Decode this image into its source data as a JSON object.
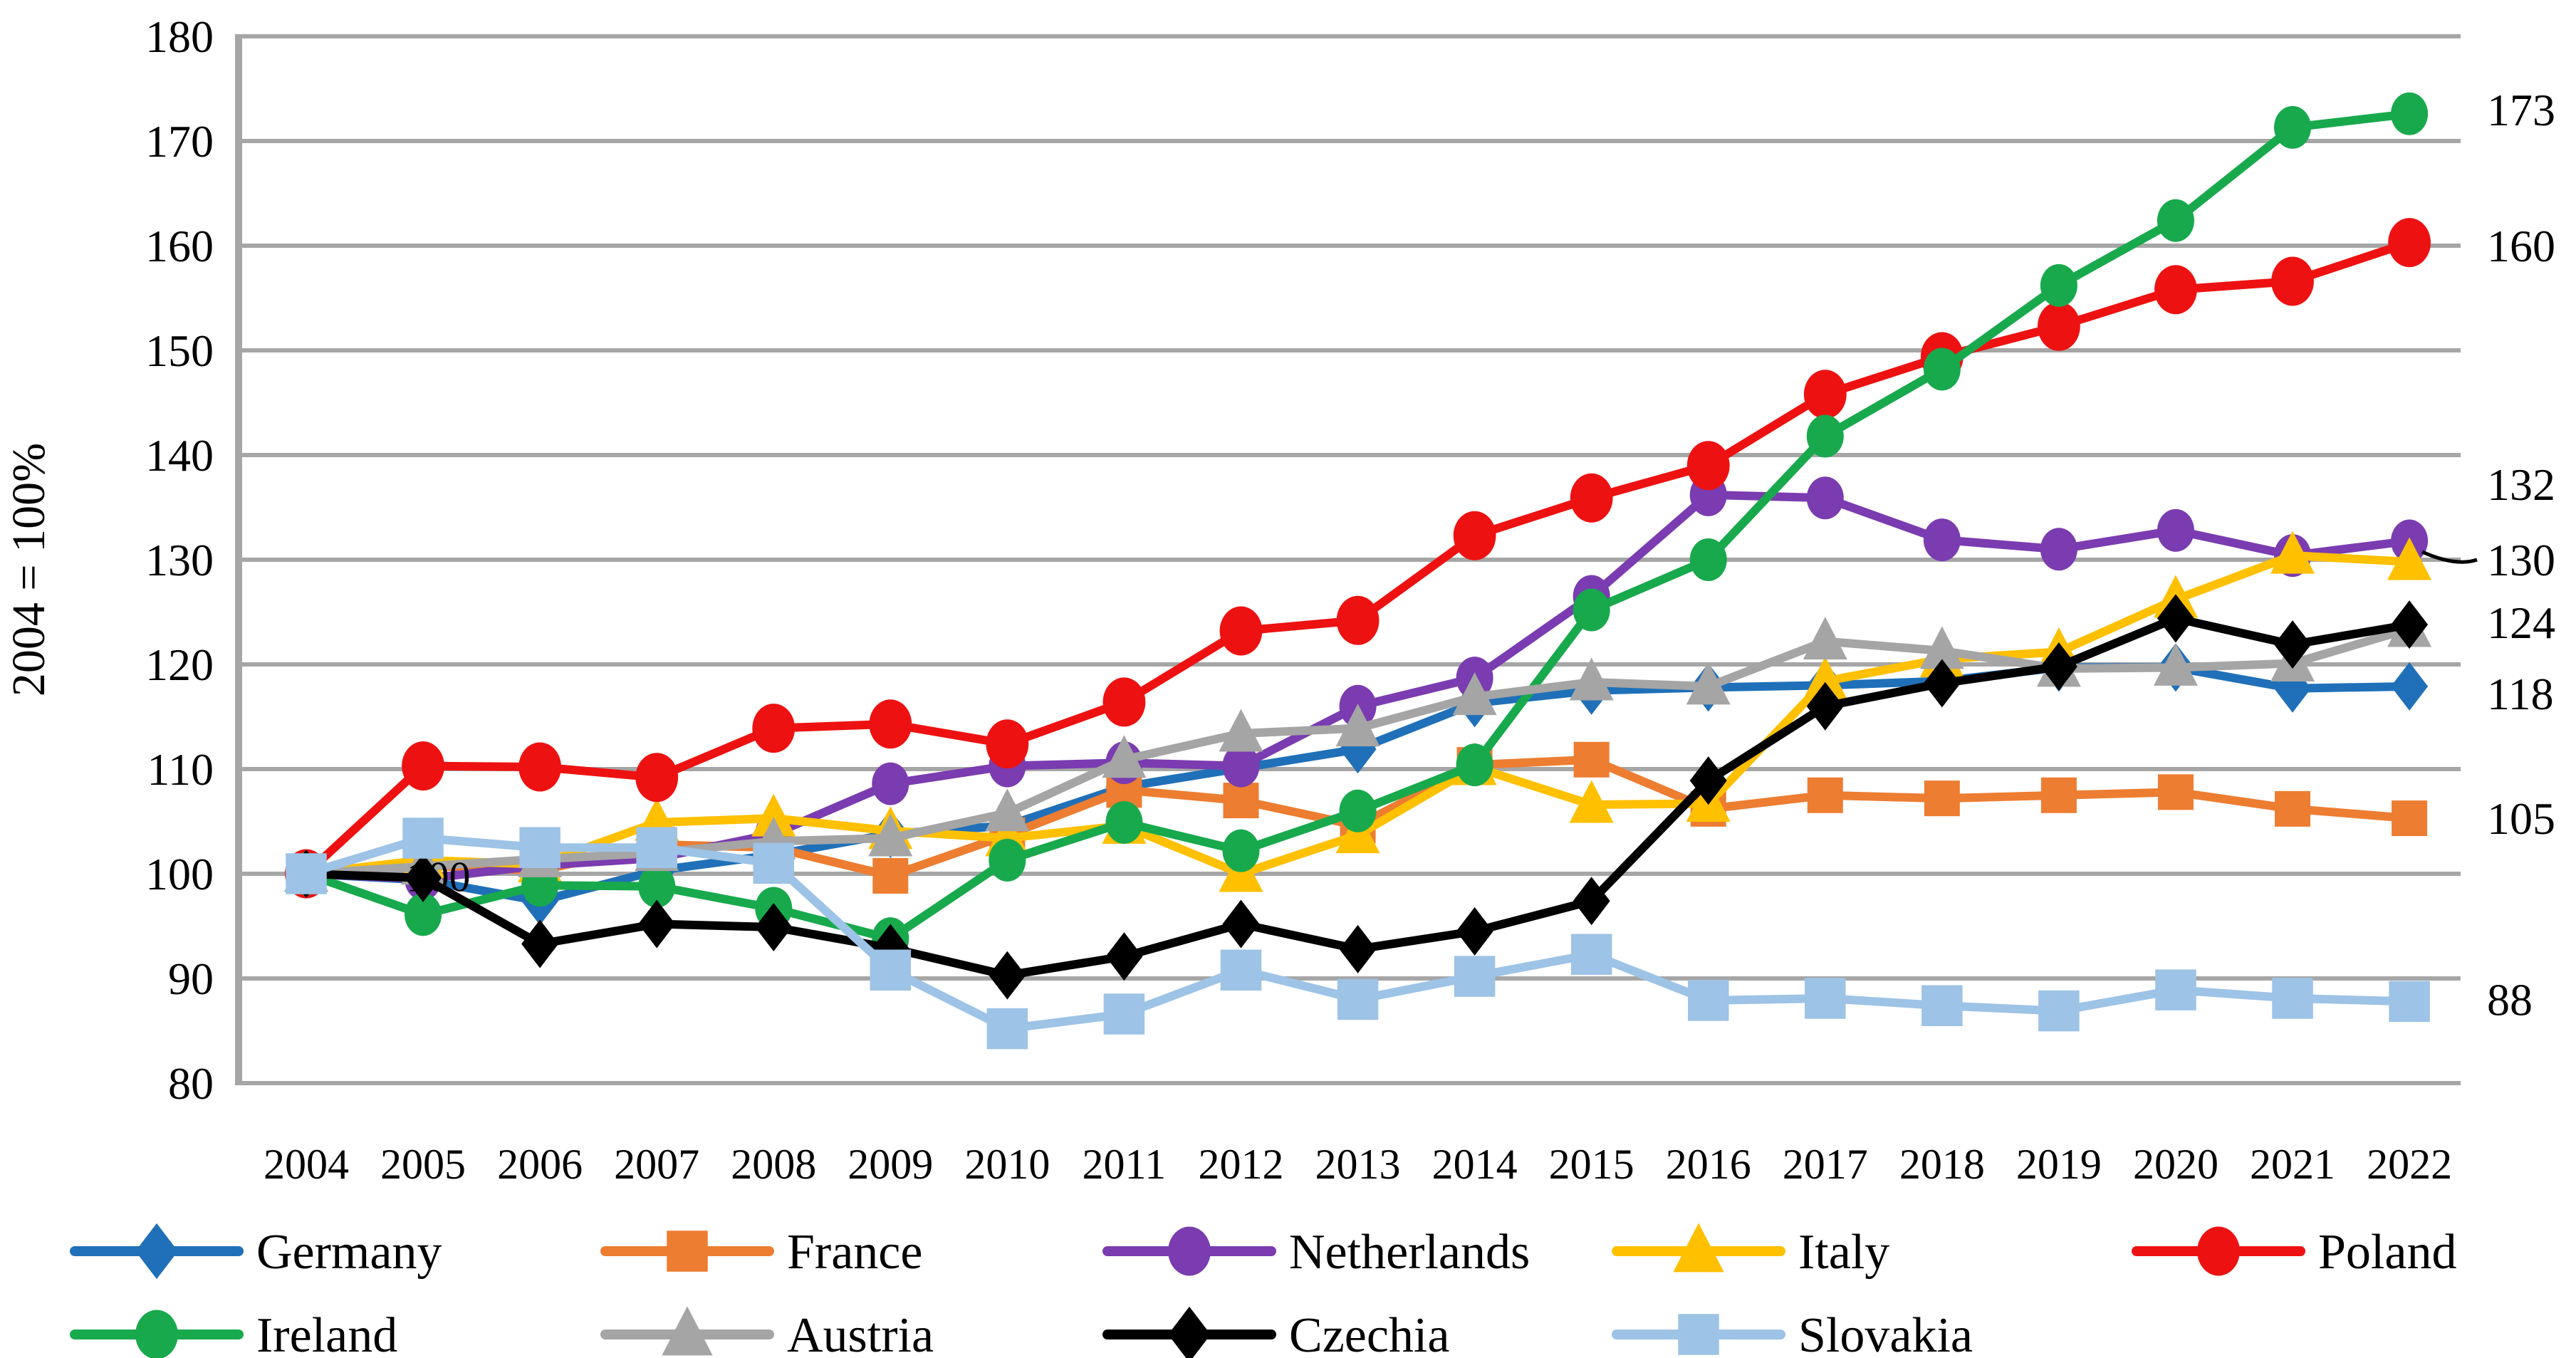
{
  "chart_data": {
    "type": "line",
    "title": "",
    "ylabel": "2004 = 100%",
    "xlabel": "",
    "x": [
      2004,
      2005,
      2006,
      2007,
      2008,
      2009,
      2010,
      2011,
      2012,
      2013,
      2014,
      2015,
      2016,
      2017,
      2018,
      2019,
      2020,
      2021,
      2022
    ],
    "ylim": [
      80,
      180
    ],
    "ytick_step": 10,
    "yticks": [
      80,
      90,
      100,
      110,
      120,
      130,
      140,
      150,
      160,
      170,
      180
    ],
    "grid": "horizontal-only",
    "legend_position": "bottom",
    "series": [
      {
        "name": "Germany",
        "color": "#1F70B8",
        "marker": "diamond",
        "values": [
          100,
          99.4,
          97.4,
          100.3,
          101.8,
          103.8,
          104.6,
          108.3,
          110.1,
          111.9,
          116.3,
          117.5,
          117.8,
          118.0,
          118.4,
          119.7,
          119.7,
          117.7,
          117.9
        ]
      },
      {
        "name": "France",
        "color": "#ED7D31",
        "marker": "square",
        "values": [
          100,
          100.8,
          100.3,
          102.8,
          102.5,
          99.8,
          103.7,
          108.0,
          107.0,
          104.6,
          110.4,
          110.9,
          106.2,
          107.5,
          107.2,
          107.5,
          107.8,
          106.2,
          105.3
        ]
      },
      {
        "name": "Netherlands",
        "color": "#7A3CB0",
        "marker": "circle",
        "values": [
          100,
          99.5,
          100.8,
          101.5,
          103.8,
          108.6,
          110.3,
          110.6,
          110.3,
          116.0,
          118.7,
          126.5,
          136.2,
          135.9,
          131.9,
          131.0,
          132.8,
          130.4,
          131.8
        ]
      },
      {
        "name": "Italy",
        "color": "#FFC000",
        "marker": "triangle",
        "values": [
          100,
          101.3,
          100.9,
          104.9,
          105.3,
          104.1,
          103.4,
          104.6,
          100.0,
          103.7,
          110.2,
          106.6,
          106.7,
          118.4,
          120.5,
          121.2,
          126.2,
          130.4,
          129.8
        ]
      },
      {
        "name": "Poland",
        "color": "#EE1111",
        "marker": "circle",
        "values": [
          100,
          110.3,
          110.2,
          109.2,
          113.9,
          114.3,
          112.4,
          116.4,
          123.2,
          124.2,
          132.3,
          135.9,
          139.0,
          145.8,
          149.4,
          152.3,
          155.8,
          156.6,
          160.3
        ]
      },
      {
        "name": "Ireland",
        "color": "#18A94D",
        "marker": "circle",
        "values": [
          100,
          96.1,
          98.9,
          98.8,
          96.7,
          93.8,
          101.3,
          104.9,
          102.2,
          106.0,
          110.4,
          125.2,
          130.0,
          141.8,
          148.2,
          156.2,
          162.4,
          171.3,
          172.6
        ]
      },
      {
        "name": "Austria",
        "color": "#A5A5A5",
        "marker": "triangle",
        "values": [
          100,
          100.7,
          101.4,
          102.0,
          103.1,
          103.4,
          105.8,
          110.9,
          113.4,
          113.9,
          116.9,
          118.3,
          117.9,
          122.2,
          121.3,
          119.6,
          119.7,
          120.1,
          123.4
        ]
      },
      {
        "name": "Czechia",
        "color": "#000000",
        "marker": "diamond",
        "values": [
          100,
          99.6,
          93.3,
          95.2,
          94.9,
          92.9,
          90.3,
          92.1,
          95.2,
          92.8,
          94.5,
          97.4,
          108.9,
          116.0,
          118.2,
          119.8,
          124.4,
          121.9,
          123.8
        ]
      },
      {
        "name": "Slovakia",
        "color": "#9DC3E6",
        "marker": "square",
        "values": [
          100,
          103.4,
          102.5,
          102.5,
          101.0,
          90.8,
          85.2,
          86.6,
          90.8,
          88.0,
          90.2,
          92.3,
          87.9,
          88.1,
          87.4,
          86.9,
          88.9,
          88.1,
          87.8
        ]
      }
    ],
    "end_labels": [
      {
        "text": "173",
        "value": 173,
        "series": "Ireland"
      },
      {
        "text": "160",
        "value": 160,
        "series": "Poland"
      },
      {
        "text": "132",
        "value": 137.2,
        "series": "Netherlands"
      },
      {
        "text": "130",
        "value": 130,
        "series": "Italy",
        "leader": true
      },
      {
        "text": "124",
        "value": 124,
        "series": "Czechia"
      },
      {
        "text": "118",
        "value": 117.2,
        "series": "Germany"
      },
      {
        "text": "105",
        "value": 105.3,
        "series": "France"
      },
      {
        "text": "88",
        "value": 88,
        "series": "Slovakia"
      }
    ],
    "start_label": {
      "text": "100",
      "x": 2005.1,
      "value": 99.7
    },
    "legend": {
      "rows": [
        [
          "Germany",
          "France",
          "Netherlands",
          "Italy",
          "Poland"
        ],
        [
          "Ireland",
          "Austria",
          "Czechia",
          "Slovakia"
        ]
      ]
    },
    "axis_color": "#A6A6A6",
    "gridline_color": "#A6A6A6",
    "text_color": "#000000"
  }
}
